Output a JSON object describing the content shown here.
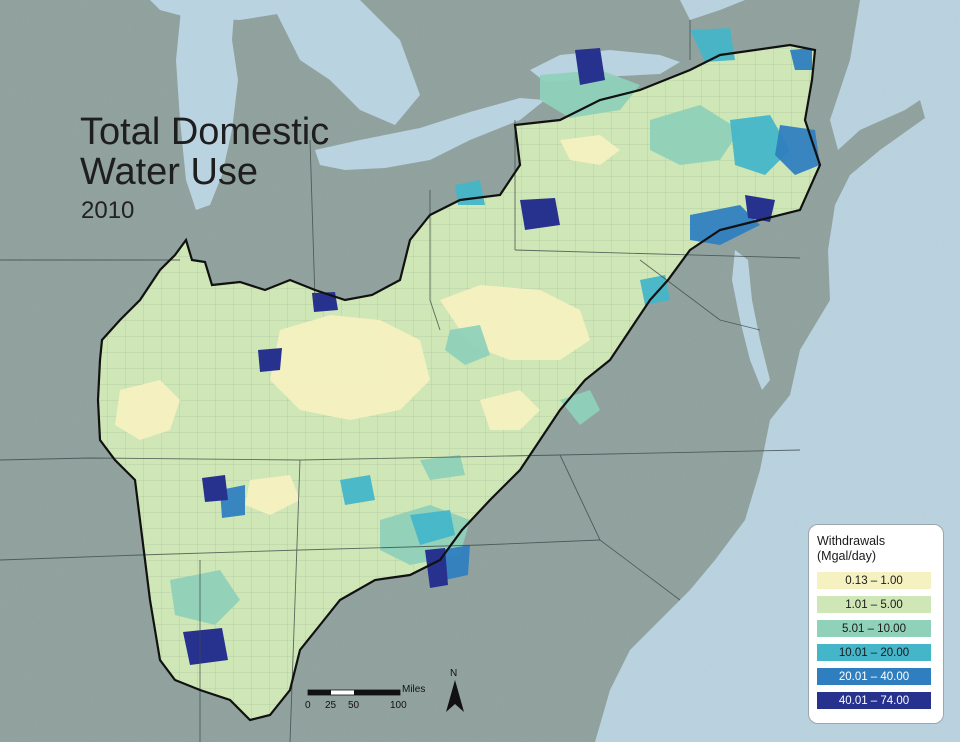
{
  "map": {
    "title_line1": "Total Domestic",
    "title_line2": "Water Use",
    "subtitle": "2010",
    "legend": {
      "title_line1": "Withdrawals",
      "title_line2": "(Mgal/day)",
      "classes": [
        {
          "label": "0.13 – 1.00",
          "color": "#f6f1c1"
        },
        {
          "label": "1.01 – 5.00",
          "color": "#cfe6b6"
        },
        {
          "label": "5.01 – 10.00",
          "color": "#8fd1b9"
        },
        {
          "label": "10.01 – 20.00",
          "color": "#45b6c9"
        },
        {
          "label": "20.01 – 40.00",
          "color": "#2f7fc0"
        },
        {
          "label": "40.01 – 74.00",
          "color": "#27318e"
        }
      ]
    },
    "scale_bar": {
      "unit": "Miles",
      "ticks": [
        "0",
        "25",
        "50",
        "100"
      ]
    },
    "north_arrow": {
      "label": "N"
    },
    "colors": {
      "water": "#b9d3e0",
      "land": "#8fa19d",
      "boundary": "#111111"
    }
  }
}
